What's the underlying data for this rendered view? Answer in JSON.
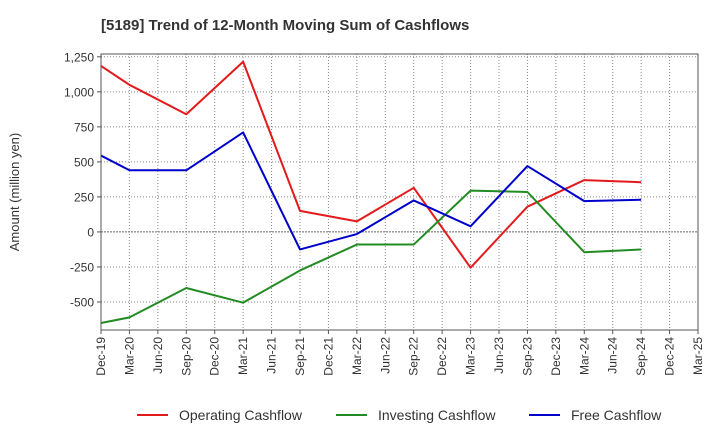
{
  "chart_data": {
    "type": "line",
    "title": "[5189]  Trend of 12-Month Moving Sum of Cashflows",
    "xlabel": "",
    "ylabel": "Amount (million yen)",
    "ylim": [
      -700,
      1270
    ],
    "yticks": [
      1250,
      1000,
      750,
      500,
      250,
      0,
      -250,
      -500
    ],
    "ytick_labels": [
      "1,250",
      "1,000",
      "750",
      "500",
      "250",
      "0",
      "-250",
      "-500"
    ],
    "categories": [
      "Dec-19",
      "Mar-20",
      "Jun-20",
      "Sep-20",
      "Dec-20",
      "Mar-21",
      "Jun-21",
      "Sep-21",
      "Dec-21",
      "Mar-22",
      "Jun-22",
      "Sep-22",
      "Dec-22",
      "Mar-23",
      "Jun-23",
      "Sep-23",
      "Dec-23",
      "Mar-24",
      "Jun-24",
      "Sep-24",
      "Dec-24",
      "Mar-25"
    ],
    "grid": true,
    "legend_position": "bottom",
    "series": [
      {
        "name": "Operating Cashflow",
        "color": "#e31a1c",
        "points": [
          {
            "x": "Dec-19",
            "y": 1185
          },
          {
            "x": "Mar-20",
            "y": 1050
          },
          {
            "x": "Sep-20",
            "y": 840
          },
          {
            "x": "Mar-21",
            "y": 1215
          },
          {
            "x": "Sep-21",
            "y": 150
          },
          {
            "x": "Mar-22",
            "y": 75
          },
          {
            "x": "Sep-22",
            "y": 315
          },
          {
            "x": "Mar-23",
            "y": -255
          },
          {
            "x": "Sep-23",
            "y": 180
          },
          {
            "x": "Mar-24",
            "y": 370
          },
          {
            "x": "Sep-24",
            "y": 355
          }
        ]
      },
      {
        "name": "Investing Cashflow",
        "color": "#238b23",
        "points": [
          {
            "x": "Dec-19",
            "y": -650
          },
          {
            "x": "Mar-20",
            "y": -610
          },
          {
            "x": "Sep-20",
            "y": -400
          },
          {
            "x": "Mar-21",
            "y": -505
          },
          {
            "x": "Sep-21",
            "y": -275
          },
          {
            "x": "Mar-22",
            "y": -90
          },
          {
            "x": "Sep-22",
            "y": -90
          },
          {
            "x": "Mar-23",
            "y": 295
          },
          {
            "x": "Sep-23",
            "y": 285
          },
          {
            "x": "Mar-24",
            "y": -145
          },
          {
            "x": "Sep-24",
            "y": -125
          }
        ]
      },
      {
        "name": "Free Cashflow",
        "color": "#0000cc",
        "points": [
          {
            "x": "Dec-19",
            "y": 545
          },
          {
            "x": "Mar-20",
            "y": 440
          },
          {
            "x": "Sep-20",
            "y": 440
          },
          {
            "x": "Mar-21",
            "y": 710
          },
          {
            "x": "Sep-21",
            "y": -125
          },
          {
            "x": "Mar-22",
            "y": -15
          },
          {
            "x": "Sep-22",
            "y": 225
          },
          {
            "x": "Mar-23",
            "y": 40
          },
          {
            "x": "Sep-23",
            "y": 470
          },
          {
            "x": "Mar-24",
            "y": 220
          },
          {
            "x": "Sep-24",
            "y": 230
          }
        ]
      }
    ]
  }
}
